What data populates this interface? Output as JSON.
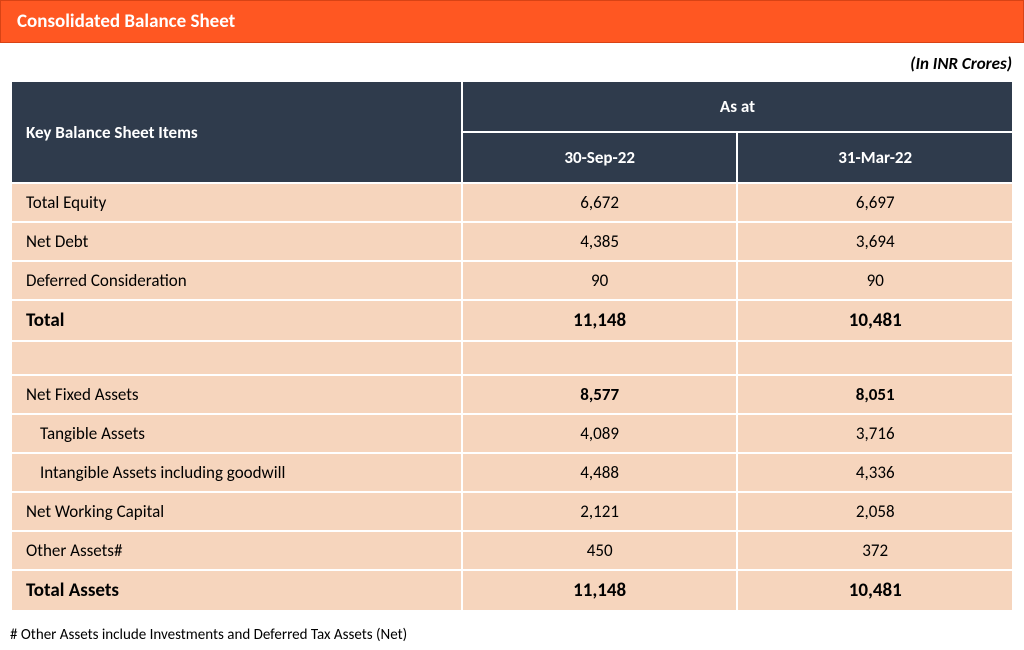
{
  "title": "Consolidated Balance Sheet",
  "unit_note": "(In INR Crores)",
  "colors": {
    "title_bg": "#ff5722",
    "title_border": "#d84315",
    "header_bg": "#2f3b4c",
    "row_bg": "#f6d5bd",
    "border": "#ffffff",
    "text_on_header": "#ffffff",
    "text_body": "#000000"
  },
  "typography": {
    "title_fontsize": 19,
    "header_fontsize": 17,
    "body_fontsize": 17,
    "bold_fontsize": 19,
    "footnote_fontsize": 15,
    "font_family": "Calibri"
  },
  "columns": {
    "row_header": "Key Balance Sheet Items",
    "group_header": "As at",
    "dates": [
      "30-Sep-22",
      "31-Mar-22"
    ],
    "label_col_width_pct": 45
  },
  "rows": [
    {
      "label": "Total Equity",
      "values": [
        "6,672",
        "6,697"
      ],
      "style": "normal"
    },
    {
      "label": "Net Debt",
      "values": [
        "4,385",
        "3,694"
      ],
      "style": "normal"
    },
    {
      "label": "Deferred Consideration",
      "values": [
        "90",
        "90"
      ],
      "style": "normal"
    },
    {
      "label": "Total",
      "values": [
        "11,148",
        "10,481"
      ],
      "style": "bold"
    },
    {
      "label": "",
      "values": [
        "",
        ""
      ],
      "style": "spacer"
    },
    {
      "label": "Net Fixed Assets",
      "values": [
        "8,577",
        "8,051"
      ],
      "style": "semi"
    },
    {
      "label": "Tangible Assets",
      "values": [
        "4,089",
        "3,716"
      ],
      "style": "indent"
    },
    {
      "label": "Intangible Assets including goodwill",
      "values": [
        "4,488",
        "4,336"
      ],
      "style": "indent"
    },
    {
      "label": "Net Working Capital",
      "values": [
        "2,121",
        "2,058"
      ],
      "style": "normal"
    },
    {
      "label": "Other Assets#",
      "values": [
        "450",
        "372"
      ],
      "style": "normal"
    },
    {
      "label": "Total Assets",
      "values": [
        "11,148",
        "10,481"
      ],
      "style": "bold"
    }
  ],
  "footnote": "# Other Assets include Investments and Deferred Tax Assets (Net)"
}
